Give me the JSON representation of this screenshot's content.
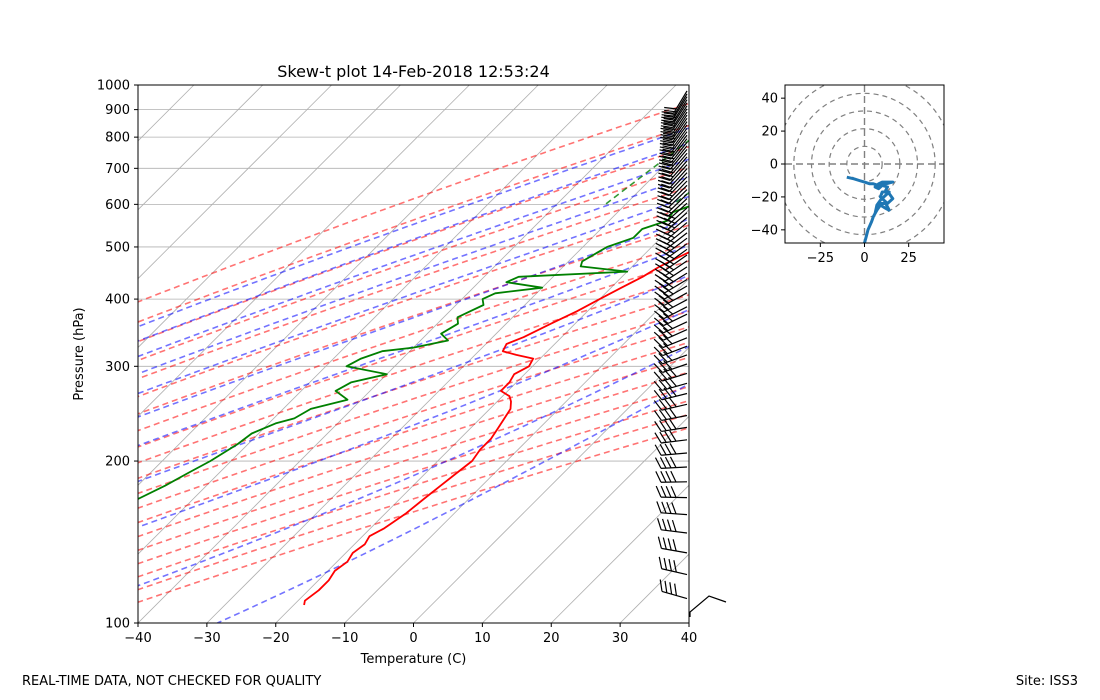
{
  "chart_data": [
    {
      "type": "line",
      "kind": "skew-t",
      "title": "Skew-t plot 14-Feb-2018 12:53:24",
      "xlabel": "Temperature (C)",
      "ylabel": "Pressure (hPa)",
      "xlim": [
        -40,
        40
      ],
      "ylim": [
        1000,
        100
      ],
      "y_scale": "log",
      "grid": true,
      "xticks": [
        "−40",
        "−30",
        "−20",
        "−10",
        "0",
        "10",
        "20",
        "30",
        "40"
      ],
      "yticks": [
        "100",
        "200",
        "300",
        "400",
        "500",
        "600",
        "700",
        "800",
        "900",
        "1000"
      ],
      "series": [
        {
          "role": "temperature",
          "color": "#ff0000",
          "points": [
            [
              1000,
              4
            ],
            [
              980,
              3
            ],
            [
              960,
              2
            ],
            [
              930,
              1
            ],
            [
              900,
              -0.5
            ],
            [
              870,
              -1.3
            ],
            [
              850,
              -1.5
            ],
            [
              830,
              -1
            ],
            [
              800,
              -1.5
            ],
            [
              770,
              -0.5
            ],
            [
              750,
              -0.2
            ],
            [
              720,
              -1
            ],
            [
              700,
              -1
            ],
            [
              680,
              -2
            ],
            [
              650,
              -3.5
            ],
            [
              620,
              -5
            ],
            [
              600,
              -6
            ],
            [
              580,
              -7
            ],
            [
              560,
              -8
            ],
            [
              540,
              -10
            ],
            [
              520,
              -11.5
            ],
            [
              500,
              -13
            ],
            [
              480,
              -14.5
            ],
            [
              460,
              -16
            ],
            [
              440,
              -17
            ],
            [
              420,
              -18.5
            ],
            [
              400,
              -20
            ],
            [
              380,
              -21.5
            ],
            [
              360,
              -23.5
            ],
            [
              340,
              -25.5
            ],
            [
              330,
              -27
            ],
            [
              320,
              -26.5
            ],
            [
              315,
              -24
            ],
            [
              310,
              -21
            ],
            [
              300,
              -20.5
            ],
            [
              290,
              -21.5
            ],
            [
              280,
              -21
            ],
            [
              270,
              -21
            ],
            [
              264,
              -19
            ],
            [
              258,
              -18
            ],
            [
              250,
              -17
            ],
            [
              240,
              -16.5
            ],
            [
              230,
              -16
            ],
            [
              220,
              -15.5
            ],
            [
              210,
              -15.5
            ],
            [
              200,
              -15
            ],
            [
              190,
              -15.5
            ],
            [
              180,
              -16
            ],
            [
              170,
              -16.5
            ],
            [
              160,
              -17
            ],
            [
              150,
              -18
            ],
            [
              145,
              -19
            ],
            [
              140,
              -18.5
            ],
            [
              135,
              -19
            ],
            [
              130,
              -18.5
            ],
            [
              125,
              -19
            ],
            [
              120,
              -18.5
            ],
            [
              115,
              -18.5
            ],
            [
              110,
              -19
            ],
            [
              108,
              -18.5
            ]
          ]
        },
        {
          "role": "dewpoint",
          "color": "#008000",
          "points": [
            [
              1000,
              -1
            ],
            [
              980,
              -1.5
            ],
            [
              960,
              -2
            ],
            [
              940,
              -3
            ],
            [
              920,
              -4
            ],
            [
              900,
              -5
            ],
            [
              880,
              -8
            ],
            [
              860,
              -10
            ],
            [
              840,
              -11
            ],
            [
              820,
              -12
            ],
            [
              800,
              -13.5
            ],
            [
              780,
              -12.5
            ],
            [
              760,
              -14.5
            ],
            [
              740,
              -13
            ],
            [
              720,
              -16
            ],
            [
              700,
              -15
            ],
            [
              680,
              -18
            ],
            [
              660,
              -17
            ],
            [
              640,
              -18
            ],
            [
              620,
              -21
            ],
            [
              600,
              -20
            ],
            [
              580,
              -22
            ],
            [
              560,
              -21.5
            ],
            [
              540,
              -24
            ],
            [
              520,
              -24
            ],
            [
              500,
              -26.5
            ],
            [
              490,
              -27
            ],
            [
              470,
              -28
            ],
            [
              460,
              -27.5
            ],
            [
              450,
              -20
            ],
            [
              440,
              -35
            ],
            [
              430,
              -36
            ],
            [
              420,
              -30
            ],
            [
              410,
              -36
            ],
            [
              400,
              -37
            ],
            [
              390,
              -36
            ],
            [
              380,
              -37
            ],
            [
              370,
              -38
            ],
            [
              360,
              -37
            ],
            [
              345,
              -38
            ],
            [
              335,
              -36
            ],
            [
              325,
              -40
            ],
            [
              320,
              -44
            ],
            [
              310,
              -46
            ],
            [
              300,
              -47
            ],
            [
              290,
              -40
            ],
            [
              280,
              -44
            ],
            [
              270,
              -45
            ],
            [
              260,
              -42
            ],
            [
              250,
              -46
            ],
            [
              240,
              -47
            ],
            [
              235,
              -49
            ],
            [
              225,
              -51
            ],
            [
              215,
              -51.5
            ],
            [
              200,
              -53
            ],
            [
              190,
              -54.5
            ],
            [
              180,
              -56
            ],
            [
              170,
              -58
            ],
            [
              160,
              -61
            ],
            [
              150,
              -63
            ],
            [
              140,
              -65
            ],
            [
              130,
              -67
            ],
            [
              120,
              -69
            ],
            [
              110,
              -72
            ],
            [
              105,
              -73
            ]
          ]
        }
      ],
      "reference_lines": {
        "dry_adiabats_color": "#ff0000",
        "moist_adiabats_color": "#0000ff",
        "mixing_ratio_color": "#008000",
        "isotherm_color": "#808080"
      }
    },
    {
      "type": "scatter",
      "kind": "hodograph",
      "xlim": [
        -45,
        45
      ],
      "ylim": [
        -48,
        48
      ],
      "xticks": [
        "−25",
        "0",
        "25"
      ],
      "yticks": [
        "40",
        "20",
        "0",
        "−20",
        "−40"
      ],
      "rings": [
        10,
        20,
        30,
        40,
        50
      ],
      "color": "#1f77b4",
      "points": [
        [
          0,
          -48
        ],
        [
          1,
          -44
        ],
        [
          2,
          -40
        ],
        [
          4,
          -35
        ],
        [
          5,
          -32
        ],
        [
          7,
          -28
        ],
        [
          9,
          -25
        ],
        [
          12,
          -27
        ],
        [
          14,
          -28
        ],
        [
          12,
          -24
        ],
        [
          8,
          -24
        ],
        [
          6,
          -30
        ],
        [
          7,
          -25
        ],
        [
          9,
          -22
        ],
        [
          11,
          -20
        ],
        [
          14,
          -17
        ],
        [
          10,
          -17
        ],
        [
          9,
          -20
        ],
        [
          11,
          -22
        ],
        [
          13,
          -24
        ],
        [
          16,
          -21
        ],
        [
          14,
          -18
        ],
        [
          12,
          -16
        ],
        [
          13,
          -14
        ],
        [
          10,
          -13
        ],
        [
          8,
          -15
        ],
        [
          6,
          -14
        ],
        [
          8,
          -12
        ],
        [
          10,
          -11
        ],
        [
          14,
          -11
        ],
        [
          16,
          -11
        ],
        [
          12,
          -12
        ],
        [
          8,
          -13
        ],
        [
          5,
          -12
        ],
        [
          3,
          -12
        ],
        [
          0,
          -11
        ],
        [
          -3,
          -10
        ],
        [
          -6,
          -9
        ],
        [
          -10,
          -8
        ]
      ]
    }
  ],
  "footer": {
    "left": "REAL-TIME DATA, NOT CHECKED FOR QUALITY",
    "right": "Site: ISS3"
  }
}
